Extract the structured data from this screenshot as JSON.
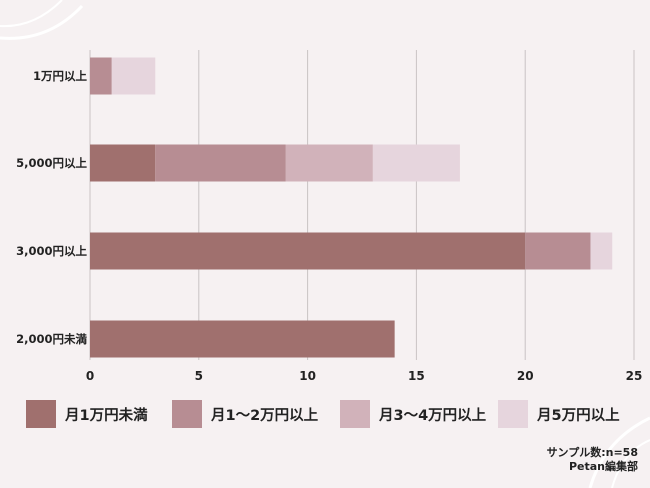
{
  "chart_data": {
    "type": "bar",
    "orientation": "horizontal",
    "stacked": true,
    "categories": [
      "1万円以上",
      "5,000円以上",
      "3,000円以上",
      "2,000円未満"
    ],
    "series": [
      {
        "name": "月1万円未満",
        "color": "#a0706e",
        "values": [
          0,
          3,
          20,
          14
        ]
      },
      {
        "name": "月1〜2万円以上",
        "color": "#b78d93",
        "values": [
          1,
          6,
          3,
          0
        ]
      },
      {
        "name": "月3〜4万円以上",
        "color": "#d1b2ba",
        "values": [
          0,
          4,
          0,
          0
        ]
      },
      {
        "name": "月5万円以上",
        "color": "#e6d5dd",
        "values": [
          2,
          4,
          1,
          0
        ]
      }
    ],
    "xlim": [
      0,
      25
    ],
    "xticks": [
      "0",
      "5",
      "10",
      "15",
      "20",
      "25"
    ],
    "grid": true,
    "legend_position": "bottom"
  },
  "footer": {
    "sample": "サンプル数:n=58",
    "credit": "Petan編集部"
  }
}
